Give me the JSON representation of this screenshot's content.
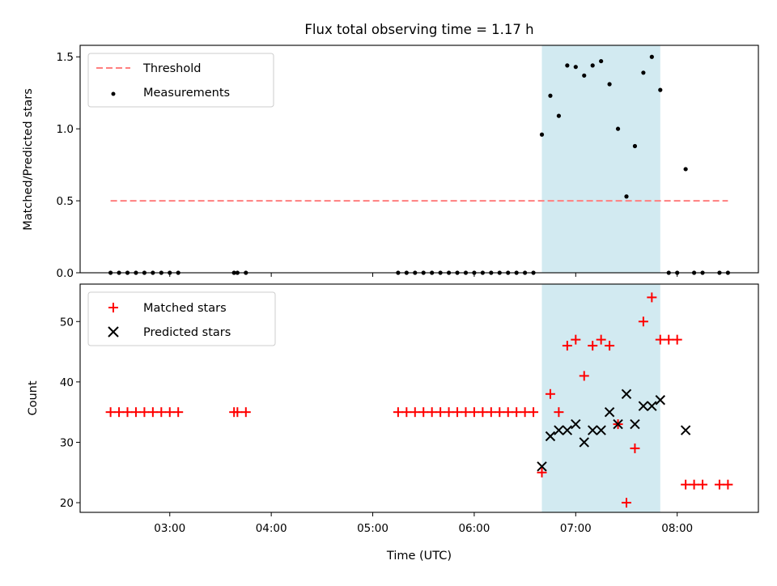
{
  "chart_data": {
    "title": "Flux total observing time = 1.17 h",
    "shaded_interval": [
      "06:40",
      "07:50"
    ],
    "shade_color": "#add8e6",
    "panels": [
      {
        "type": "scatter",
        "ylabel": "Matched/Predicted stars",
        "ylim": [
          0,
          1.58
        ],
        "yticks": [
          0.0,
          0.5,
          1.0,
          1.5
        ],
        "ytick_labels": [
          "0.0",
          "0.5",
          "1.0",
          "1.5"
        ],
        "legend_placement": "upper-left",
        "threshold": {
          "name": "Threshold",
          "value": 0.5,
          "x_range": [
            "02:25",
            "08:30"
          ],
          "color": "#ff7f7f",
          "style": "dashed"
        },
        "series": [
          {
            "name": "Measurements",
            "marker": "dot",
            "color": "#000000",
            "x": [
              "02:25",
              "02:30",
              "02:35",
              "02:40",
              "02:45",
              "02:50",
              "02:55",
              "03:00",
              "03:05",
              "03:38",
              "03:40",
              "03:45",
              "05:15",
              "05:20",
              "05:25",
              "05:30",
              "05:35",
              "05:40",
              "05:45",
              "05:50",
              "05:55",
              "06:00",
              "06:05",
              "06:10",
              "06:15",
              "06:20",
              "06:25",
              "06:30",
              "06:35",
              "06:40",
              "06:45",
              "06:50",
              "06:55",
              "07:00",
              "07:05",
              "07:10",
              "07:15",
              "07:20",
              "07:25",
              "07:30",
              "07:35",
              "07:40",
              "07:45",
              "07:50",
              "07:55",
              "08:00",
              "08:05",
              "08:10",
              "08:15",
              "08:25",
              "08:30"
            ],
            "y": [
              0,
              0,
              0,
              0,
              0,
              0,
              0,
              0,
              0,
              0,
              0,
              0,
              0,
              0,
              0,
              0,
              0,
              0,
              0,
              0,
              0,
              0,
              0,
              0,
              0,
              0,
              0,
              0,
              0,
              0.96,
              1.23,
              1.09,
              1.44,
              1.43,
              1.37,
              1.44,
              1.47,
              1.31,
              1.0,
              0.53,
              0.88,
              1.39,
              1.5,
              1.27,
              0,
              0,
              0.72,
              0,
              0,
              0,
              0
            ]
          }
        ]
      },
      {
        "type": "scatter",
        "ylabel": "Count",
        "xlabel": "Time (UTC)",
        "ylim": [
          18.4,
          56.2
        ],
        "yticks": [
          20,
          30,
          40,
          50
        ],
        "ytick_labels": [
          "20",
          "30",
          "40",
          "50"
        ],
        "xticks": [
          "03:00",
          "04:00",
          "05:00",
          "06:00",
          "07:00",
          "08:00"
        ],
        "xlim": [
          "02:07",
          "08:48"
        ],
        "legend_placement": "upper-left",
        "series": [
          {
            "name": "Matched stars",
            "marker": "plus",
            "color": "#ff0000",
            "x": [
              "02:25",
              "02:30",
              "02:35",
              "02:40",
              "02:45",
              "02:50",
              "02:55",
              "03:00",
              "03:05",
              "03:38",
              "03:40",
              "03:45",
              "05:15",
              "05:20",
              "05:25",
              "05:30",
              "05:35",
              "05:40",
              "05:45",
              "05:50",
              "05:55",
              "06:00",
              "06:05",
              "06:10",
              "06:15",
              "06:20",
              "06:25",
              "06:30",
              "06:35",
              "06:40",
              "06:45",
              "06:50",
              "06:55",
              "07:00",
              "07:05",
              "07:10",
              "07:15",
              "07:20",
              "07:25",
              "07:30",
              "07:35",
              "07:40",
              "07:45",
              "07:50",
              "07:55",
              "08:00",
              "08:05",
              "08:10",
              "08:15",
              "08:25",
              "08:30"
            ],
            "y": [
              35,
              35,
              35,
              35,
              35,
              35,
              35,
              35,
              35,
              35,
              35,
              35,
              35,
              35,
              35,
              35,
              35,
              35,
              35,
              35,
              35,
              35,
              35,
              35,
              35,
              35,
              35,
              35,
              35,
              25,
              38,
              35,
              46,
              47,
              41,
              46,
              47,
              46,
              33,
              20,
              29,
              50,
              54,
              47,
              47,
              47,
              23,
              23,
              23,
              23,
              23
            ]
          },
          {
            "name": "Predicted stars",
            "marker": "x",
            "color": "#000000",
            "x": [
              "06:40",
              "06:45",
              "06:50",
              "06:55",
              "07:00",
              "07:05",
              "07:10",
              "07:15",
              "07:20",
              "07:25",
              "07:30",
              "07:35",
              "07:40",
              "07:45",
              "07:50",
              "08:05"
            ],
            "y": [
              26,
              31,
              32,
              32,
              33,
              30,
              32,
              32,
              35,
              33,
              38,
              33,
              36,
              36,
              37,
              32
            ]
          }
        ]
      }
    ]
  }
}
